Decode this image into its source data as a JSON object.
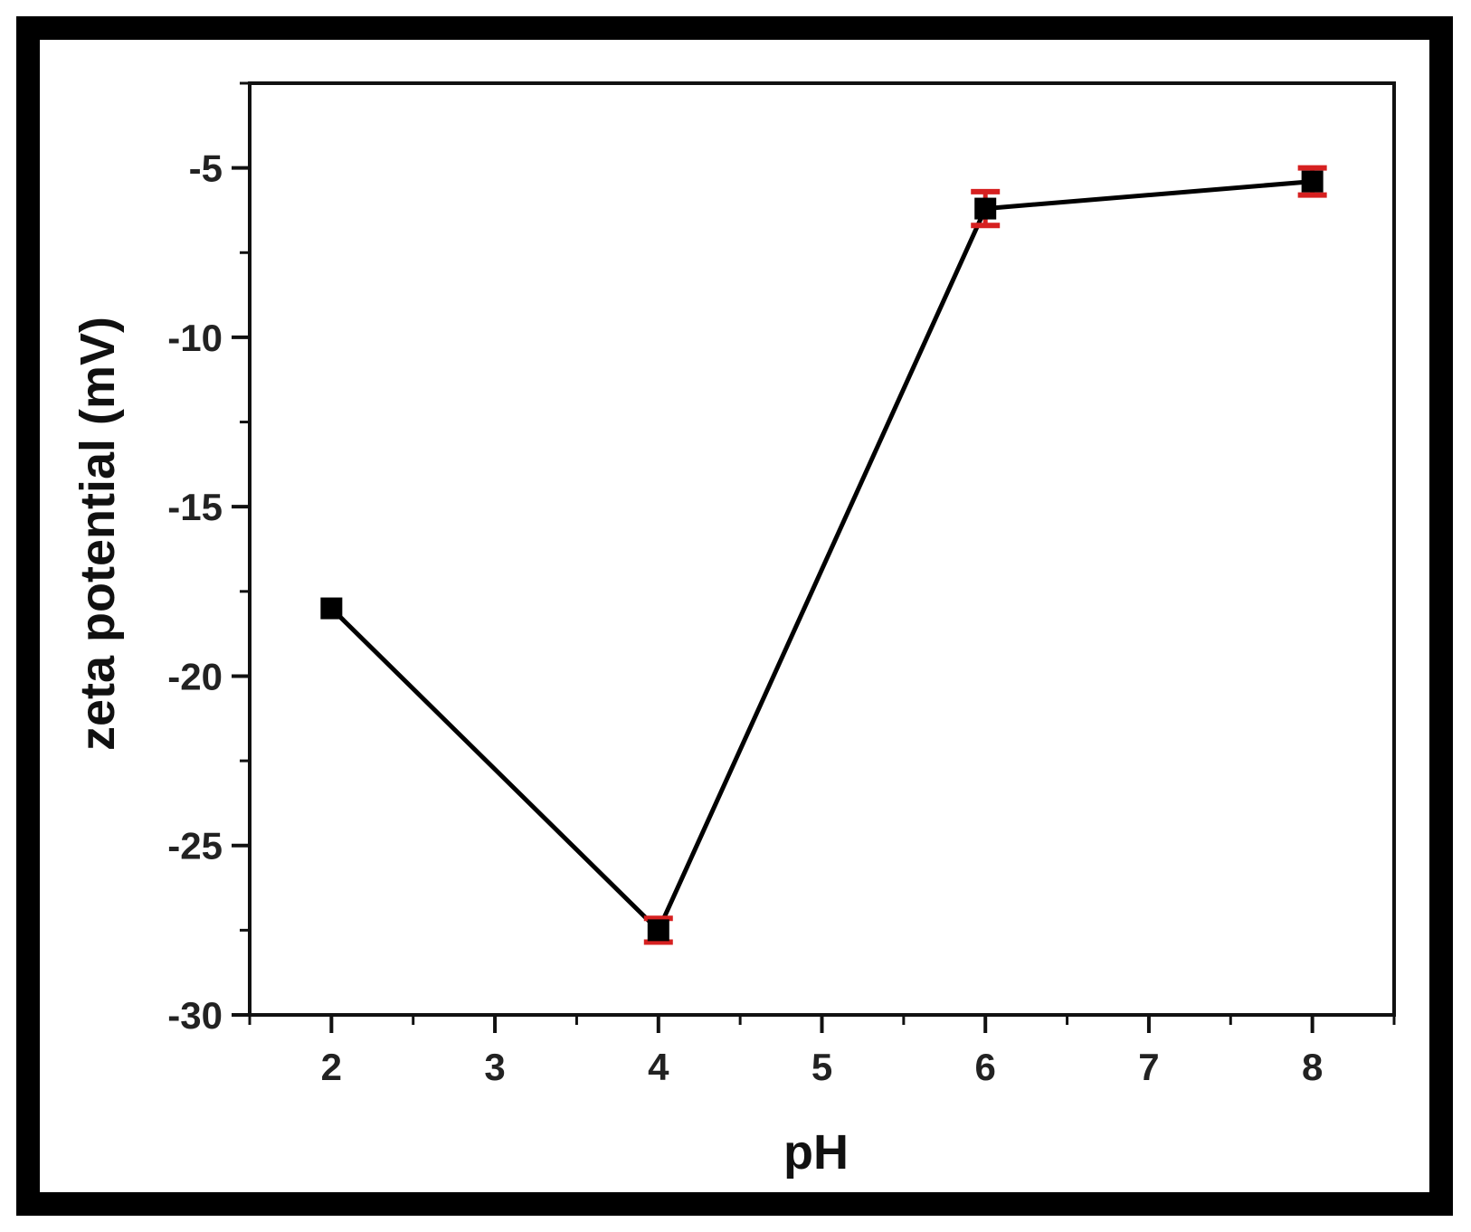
{
  "chart_data": {
    "type": "line",
    "xlabel": "pH",
    "ylabel": "zeta potential (mV)",
    "xlim": [
      1.5,
      8.5
    ],
    "ylim": [
      -30,
      -2.5
    ],
    "xticks": [
      2,
      3,
      4,
      5,
      6,
      7,
      8
    ],
    "yticks": [
      -30,
      -25,
      -20,
      -15,
      -10,
      -5
    ],
    "grid": false,
    "legend": "none",
    "series": [
      {
        "x": [
          2,
          4,
          6,
          8
        ],
        "y": [
          -18.0,
          -27.5,
          -6.2,
          -5.4
        ],
        "error": [
          0.0,
          0.35,
          0.5,
          0.4
        ],
        "marker": "square",
        "line_color": "#000000",
        "marker_color": "#000000",
        "error_color": "#d62020"
      }
    ]
  }
}
